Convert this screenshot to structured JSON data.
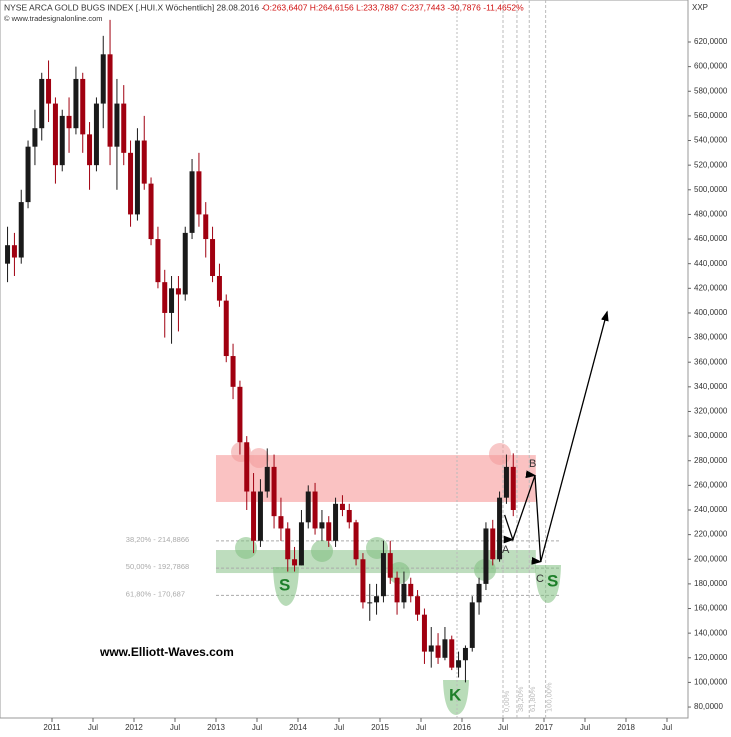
{
  "chart_data": {
    "type": "candlestick",
    "title": "NYSE ARCA GOLD BUGS INDEX [.HUI.X  Wöchentlich] 28.08.2016 -",
    "quote": "O:263,6407 H:264,6156 L:233,7887 C:237,7443 -30,7876 -11,4652%",
    "watermark": "© www.tradesignalonline.com",
    "corner_label": "XXP",
    "site": "www.Elliott-Waves.com",
    "up_color": "#1a1a1a",
    "down_color": "#a00010",
    "x": [
      2010.458,
      2010.542,
      2010.625,
      2010.708,
      2010.792,
      2010.875,
      2010.958,
      2011.042,
      2011.125,
      2011.208,
      2011.292,
      2011.375,
      2011.458,
      2011.542,
      2011.625,
      2011.708,
      2011.792,
      2011.875,
      2011.958,
      2012.042,
      2012.125,
      2012.208,
      2012.292,
      2012.375,
      2012.458,
      2012.542,
      2012.625,
      2012.708,
      2012.792,
      2012.875,
      2012.958,
      2013.042,
      2013.125,
      2013.208,
      2013.292,
      2013.375,
      2013.458,
      2013.542,
      2013.625,
      2013.708,
      2013.792,
      2013.875,
      2013.958,
      2014.042,
      2014.125,
      2014.208,
      2014.292,
      2014.375,
      2014.458,
      2014.542,
      2014.625,
      2014.708,
      2014.792,
      2014.875,
      2014.958,
      2015.042,
      2015.125,
      2015.208,
      2015.292,
      2015.375,
      2015.458,
      2015.542,
      2015.625,
      2015.708,
      2015.792,
      2015.875,
      2015.958,
      2016.042,
      2016.125,
      2016.208,
      2016.292,
      2016.375,
      2016.458,
      2016.542,
      2016.625
    ],
    "open": [
      440,
      455,
      445,
      490,
      535,
      550,
      590,
      570,
      520,
      560,
      550,
      590,
      545,
      520,
      570,
      610,
      535,
      570,
      530,
      480,
      540,
      505,
      460,
      425,
      400,
      420,
      415,
      465,
      515,
      480,
      460,
      430,
      410,
      365,
      340,
      295,
      255,
      215,
      255,
      275,
      235,
      225,
      200,
      195,
      230,
      255,
      225,
      230,
      215,
      245,
      240,
      230,
      200,
      165,
      165,
      170,
      205,
      185,
      165,
      180,
      170,
      155,
      125,
      130,
      120,
      135,
      112,
      118,
      128,
      165,
      180,
      225,
      200,
      250,
      275
    ],
    "high": [
      470,
      465,
      500,
      540,
      565,
      595,
      605,
      575,
      565,
      575,
      600,
      595,
      555,
      575,
      625,
      638,
      590,
      585,
      540,
      550,
      560,
      510,
      470,
      435,
      430,
      430,
      470,
      525,
      530,
      490,
      470,
      440,
      415,
      375,
      345,
      300,
      270,
      265,
      290,
      285,
      250,
      230,
      210,
      240,
      260,
      262,
      240,
      235,
      250,
      252,
      245,
      232,
      205,
      180,
      180,
      215,
      215,
      190,
      190,
      185,
      175,
      160,
      145,
      140,
      145,
      138,
      125,
      130,
      170,
      185,
      230,
      232,
      255,
      285,
      286
    ],
    "low": [
      425,
      430,
      440,
      485,
      520,
      540,
      555,
      505,
      515,
      530,
      545,
      530,
      500,
      515,
      550,
      520,
      500,
      520,
      470,
      475,
      500,
      455,
      420,
      380,
      375,
      385,
      410,
      460,
      470,
      445,
      425,
      405,
      360,
      330,
      285,
      240,
      205,
      210,
      250,
      225,
      215,
      190,
      190,
      195,
      225,
      220,
      215,
      210,
      210,
      235,
      225,
      195,
      160,
      150,
      155,
      165,
      180,
      155,
      160,
      165,
      150,
      115,
      112,
      115,
      118,
      110,
      104,
      100,
      125,
      155,
      175,
      195,
      198,
      245,
      235
    ],
    "close": [
      455,
      445,
      490,
      535,
      550,
      590,
      570,
      520,
      560,
      550,
      590,
      545,
      520,
      570,
      610,
      535,
      570,
      530,
      480,
      540,
      505,
      460,
      425,
      400,
      420,
      415,
      465,
      515,
      480,
      460,
      430,
      410,
      365,
      340,
      295,
      255,
      215,
      255,
      275,
      235,
      225,
      200,
      195,
      230,
      255,
      225,
      230,
      215,
      245,
      240,
      230,
      200,
      165,
      165,
      170,
      205,
      185,
      165,
      180,
      170,
      155,
      125,
      130,
      120,
      135,
      112,
      118,
      128,
      165,
      180,
      225,
      200,
      250,
      275,
      240
    ],
    "xlim": [
      2010.366,
      2018.756
    ],
    "ylim": [
      71.1,
      654.1
    ],
    "xticks": [
      {
        "value": 2011,
        "label": "2011"
      },
      {
        "value": 2011.5,
        "label": "Jul"
      },
      {
        "value": 2012,
        "label": "2012"
      },
      {
        "value": 2012.5,
        "label": "Jul"
      },
      {
        "value": 2013,
        "label": "2013"
      },
      {
        "value": 2013.5,
        "label": "Jul"
      },
      {
        "value": 2014,
        "label": "2014"
      },
      {
        "value": 2014.5,
        "label": "Jul"
      },
      {
        "value": 2015,
        "label": "2015"
      },
      {
        "value": 2015.5,
        "label": "Jul"
      },
      {
        "value": 2016,
        "label": "2016"
      },
      {
        "value": 2016.5,
        "label": "Jul"
      },
      {
        "value": 2017,
        "label": "2017"
      },
      {
        "value": 2017.5,
        "label": "Jul"
      },
      {
        "value": 2018,
        "label": "2018"
      },
      {
        "value": 2018.5,
        "label": "Jul"
      }
    ],
    "yticks": [
      {
        "value": 80,
        "label": "80,0000"
      },
      {
        "value": 100,
        "label": "100,0000"
      },
      {
        "value": 120,
        "label": "120,0000"
      },
      {
        "value": 140,
        "label": "140,0000"
      },
      {
        "value": 160,
        "label": "160,0000"
      },
      {
        "value": 180,
        "label": "180,0000"
      },
      {
        "value": 200,
        "label": "200,0000"
      },
      {
        "value": 220,
        "label": "220,0000"
      },
      {
        "value": 240,
        "label": "240,0000"
      },
      {
        "value": 260,
        "label": "260,0000"
      },
      {
        "value": 280,
        "label": "280,0000"
      },
      {
        "value": 300,
        "label": "300,0000"
      },
      {
        "value": 320,
        "label": "320,0000"
      },
      {
        "value": 340,
        "label": "340,0000"
      },
      {
        "value": 360,
        "label": "360,0000"
      },
      {
        "value": 380,
        "label": "380,0000"
      },
      {
        "value": 400,
        "label": "400,0000"
      },
      {
        "value": 420,
        "label": "420,0000"
      },
      {
        "value": 440,
        "label": "440,0000"
      },
      {
        "value": 460,
        "label": "460,0000"
      },
      {
        "value": 480,
        "label": "480,0000"
      },
      {
        "value": 500,
        "label": "500,0000"
      },
      {
        "value": 520,
        "label": "520,0000"
      },
      {
        "value": 540,
        "label": "540,0000"
      },
      {
        "value": 560,
        "label": "560,0000"
      },
      {
        "value": 580,
        "label": "580,0000"
      },
      {
        "value": 600,
        "label": "600,0000"
      },
      {
        "value": 620,
        "label": "620,0000"
      }
    ],
    "zones": [
      {
        "from": 246.5,
        "to": 284.6,
        "color": "rgba(245,120,120,0.45)"
      },
      {
        "from": 188.8,
        "to": 207.5,
        "color": "rgba(110,180,110,0.45)"
      }
    ],
    "fib_levels": [
      {
        "value": 214.8866,
        "label": "38,20% - 214,8866"
      },
      {
        "value": 192.7868,
        "label": "50,00% - 192,7868"
      },
      {
        "value": 170.687,
        "label": "61,80% - 170,687"
      }
    ],
    "time_fibs": [
      {
        "value": 2016.5,
        "label": "0,00%"
      },
      {
        "value": 2016.67,
        "label": "38,20%"
      },
      {
        "value": 2016.82,
        "label": "61,80%"
      },
      {
        "value": 2017.02,
        "label": "100,00%"
      }
    ],
    "projection": {
      "x": [
        2016.52,
        2016.62,
        2016.89,
        2016.96,
        2017.77
      ],
      "y": [
        236,
        216,
        268,
        198,
        401
      ]
    },
    "wave_labels": [
      "A",
      "B",
      "C",
      "S",
      "S",
      "K"
    ]
  }
}
